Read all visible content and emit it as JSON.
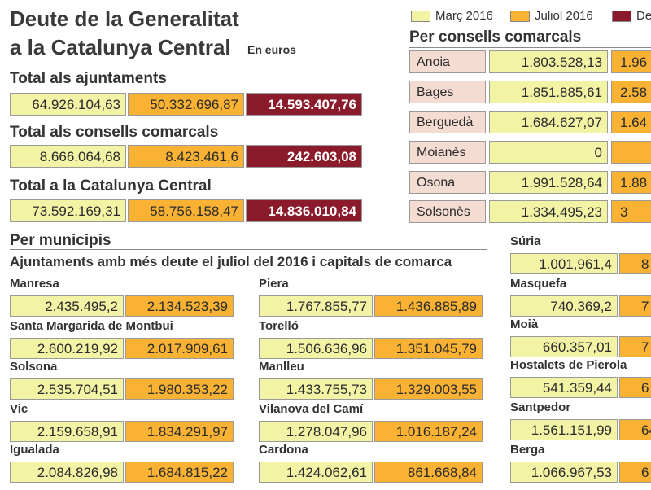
{
  "title_line1": "Deute de la Generalitat",
  "title_line2": "a la Catalunya Central",
  "unit": "En euros",
  "legend": {
    "march": "Març 2016",
    "july": "Juliol 2016",
    "dec": "De"
  },
  "totals": {
    "ajuntaments": {
      "label": "Total als ajuntaments",
      "march": "64.926.104,63",
      "july": "50.332.696,87",
      "diff": "14.593.407,76"
    },
    "consells": {
      "label": "Total als consells comarcals",
      "march": "8.666.064,68",
      "july": "8.423.461,6",
      "diff": "242.603,08"
    },
    "catalunya": {
      "label": "Total a la Catalunya Central",
      "march": "73.592.169,31",
      "july": "58.756.158,47",
      "diff": "14.836.010,84"
    }
  },
  "consells_title": "Per consells comarcals",
  "consells": [
    {
      "name": "Anoia",
      "march": "1.803.528,13",
      "july": "1.96"
    },
    {
      "name": "Bages",
      "march": "1.851.885,61",
      "july": "2.58"
    },
    {
      "name": "Berguedà",
      "march": "1.684.627,07",
      "july": "1.64"
    },
    {
      "name": "Moianès",
      "march": "0",
      "july": ""
    },
    {
      "name": "Osona",
      "march": "1.991.528,64",
      "july": "1.88"
    },
    {
      "name": "Solsonès",
      "march": "1.334.495,23",
      "july": "3"
    }
  ],
  "municipis_title": "Per municipis",
  "municipis_subtitle": "Ajuntaments amb més deute el juliol del 2016 i capitals de comarca",
  "municipis": {
    "col1": [
      {
        "name": "Manresa",
        "march": "2.435.495,2",
        "july": "2.134.523,39"
      },
      {
        "name": "Santa Margarida de Montbui",
        "march": "2.600.219,92",
        "july": "2.017.909,61"
      },
      {
        "name": "Solsona",
        "march": "2.535.704,51",
        "july": "1.980.353,22"
      },
      {
        "name": "Vic",
        "march": "2.159.658,91",
        "july": "1.834.291,97"
      },
      {
        "name": "Igualada",
        "march": "2.084.826,98",
        "july": "1.684.815,22"
      }
    ],
    "col2": [
      {
        "name": "Piera",
        "march": "1.767.855,77",
        "july": "1.436.885,89"
      },
      {
        "name": "Torelló",
        "march": "1.506.636,96",
        "july": "1.351.045,79"
      },
      {
        "name": "Manlleu",
        "march": "1.433.755,73",
        "july": "1.329.003,55"
      },
      {
        "name": "Vilanova del Camí",
        "march": "1.278.047,96",
        "july": "1.016.187,24"
      },
      {
        "name": "Cardona",
        "march": "1.424.062,61",
        "july": "861.668,84"
      }
    ],
    "col3": [
      {
        "name": "Súria",
        "march": "1.001,961,4",
        "july": "8"
      },
      {
        "name": "Masquefa",
        "march": "740.369,2",
        "july": "7"
      },
      {
        "name": "Moià",
        "march": "660.357,01",
        "july": "7"
      },
      {
        "name": "Hostalets de Pierola",
        "march": "541.359,44",
        "july": "6"
      },
      {
        "name": "Santpedor",
        "march": "1.561.151,99",
        "july": "64"
      },
      {
        "name": "Berga",
        "march": "1.066.967,53",
        "july": "6"
      }
    ]
  },
  "colors": {
    "march": "#f3f3a6",
    "july": "#f9b233",
    "diff": "#8b1b2a",
    "name": "#f5dcd2"
  },
  "chart_data": {
    "type": "table",
    "columns": [
      "Març 2016",
      "Juliol 2016",
      "De"
    ],
    "series": [
      {
        "name": "Març 2016",
        "values": [
          64926104.63,
          8666064.68,
          73592169.31
        ]
      },
      {
        "name": "Juliol 2016",
        "values": [
          50332696.87,
          8423461.6,
          58756158.47
        ]
      }
    ],
    "categories": [
      "Total als ajuntaments",
      "Total als consells comarcals",
      "Total a la Catalunya Central"
    ]
  }
}
